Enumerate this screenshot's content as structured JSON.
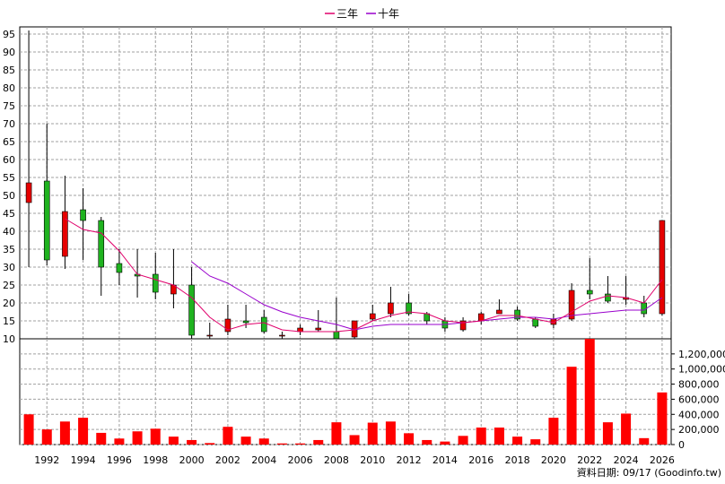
{
  "legend": {
    "items": [
      {
        "label": "三年",
        "color": "#e0006b"
      },
      {
        "label": "十年",
        "color": "#9900cc"
      }
    ],
    "placement": "top-center"
  },
  "footer": {
    "source": "資料日期: 09/17  (Goodinfo.tw)"
  },
  "colors": {
    "up": "#e60000",
    "down": "#1fb31f",
    "volume": "#ff0000",
    "grid": "#a0a0a0",
    "ma3": "#e0006b",
    "ma10": "#9900cc"
  },
  "chart_data": [
    {
      "type": "candlestick",
      "title": "",
      "xlabel": "",
      "ylabel": "",
      "x_ticks": [
        1992,
        1994,
        1996,
        1998,
        2000,
        2002,
        2004,
        2006,
        2008,
        2010,
        2012,
        2014,
        2016,
        2018,
        2020,
        2022,
        2024,
        2026
      ],
      "xlim": [
        1990.5,
        2026.5
      ],
      "ylim": [
        10,
        97
      ],
      "y_ticks": [
        10,
        15,
        20,
        25,
        30,
        35,
        40,
        45,
        50,
        55,
        60,
        65,
        70,
        75,
        80,
        85,
        90,
        95
      ],
      "grid": true,
      "candles": [
        {
          "year": 1991,
          "open": 48,
          "close": 53.5,
          "high": 96,
          "low": 30
        },
        {
          "year": 1992,
          "open": 54,
          "close": 32,
          "high": 70,
          "low": 30.5
        },
        {
          "year": 1993,
          "open": 33,
          "close": 45.5,
          "high": 55.5,
          "low": 29.5
        },
        {
          "year": 1994,
          "open": 46,
          "close": 43,
          "high": 52,
          "low": 32
        },
        {
          "year": 1995,
          "open": 43,
          "close": 30,
          "high": 44,
          "low": 22
        },
        {
          "year": 1996,
          "open": 31,
          "close": 28.5,
          "high": 35,
          "low": 25
        },
        {
          "year": 1997,
          "open": 28,
          "close": 27.5,
          "high": 35,
          "low": 21.5
        },
        {
          "year": 1998,
          "open": 28,
          "close": 23,
          "high": 34,
          "low": 21
        },
        {
          "year": 1999,
          "open": 22.5,
          "close": 25,
          "high": 35,
          "low": 18.5
        },
        {
          "year": 2000,
          "open": 25,
          "close": 11,
          "high": 30,
          "low": 10
        },
        {
          "year": 2001,
          "open": 11,
          "close": 11,
          "high": 14.5,
          "low": 10
        },
        {
          "year": 2002,
          "open": 12,
          "close": 15.5,
          "high": 19.5,
          "low": 11
        },
        {
          "year": 2003,
          "open": 15,
          "close": 14.5,
          "high": 19.5,
          "low": 13
        },
        {
          "year": 2004,
          "open": 16,
          "close": 12,
          "high": 18,
          "low": 11.5
        },
        {
          "year": 2005,
          "open": 11,
          "close": 11,
          "high": 12,
          "low": 10
        },
        {
          "year": 2006,
          "open": 12,
          "close": 13,
          "high": 14,
          "low": 11
        },
        {
          "year": 2007,
          "open": 12.5,
          "close": 13,
          "high": 18,
          "low": 12
        },
        {
          "year": 2008,
          "open": 12,
          "close": 10,
          "high": 21.5,
          "low": 9.5
        },
        {
          "year": 2009,
          "open": 10.5,
          "close": 15,
          "high": 15,
          "low": 10
        },
        {
          "year": 2010,
          "open": 15.5,
          "close": 17,
          "high": 19.5,
          "low": 15
        },
        {
          "year": 2011,
          "open": 17,
          "close": 20,
          "high": 24.5,
          "low": 16
        },
        {
          "year": 2012,
          "open": 20,
          "close": 17,
          "high": 22.5,
          "low": 16.5
        },
        {
          "year": 2013,
          "open": 17,
          "close": 15,
          "high": 17.5,
          "low": 14
        },
        {
          "year": 2014,
          "open": 15,
          "close": 13,
          "high": 16,
          "low": 12
        },
        {
          "year": 2015,
          "open": 12.5,
          "close": 15,
          "high": 16,
          "low": 12
        },
        {
          "year": 2016,
          "open": 15,
          "close": 17,
          "high": 17.5,
          "low": 14
        },
        {
          "year": 2017,
          "open": 17,
          "close": 18,
          "high": 21,
          "low": 17
        },
        {
          "year": 2018,
          "open": 18,
          "close": 15.5,
          "high": 19,
          "low": 15
        },
        {
          "year": 2019,
          "open": 15.5,
          "close": 13.5,
          "high": 16,
          "low": 13
        },
        {
          "year": 2020,
          "open": 14,
          "close": 15.5,
          "high": 17,
          "low": 13
        },
        {
          "year": 2021,
          "open": 15.5,
          "close": 23.5,
          "high": 25.5,
          "low": 15
        },
        {
          "year": 2022,
          "open": 23.5,
          "close": 22.5,
          "high": 32.5,
          "low": 21
        },
        {
          "year": 2023,
          "open": 22.5,
          "close": 20.5,
          "high": 27.5,
          "low": 20
        },
        {
          "year": 2024,
          "open": 21,
          "close": 21.5,
          "high": 27.5,
          "low": 19.5
        },
        {
          "year": 2025,
          "open": 20,
          "close": 17,
          "high": 22,
          "low": 16
        },
        {
          "year": 2026,
          "open": 17,
          "close": 43,
          "high": 43,
          "low": 16.5
        }
      ],
      "series": [
        {
          "name": "三年",
          "values": [
            [
              1993,
              43.5
            ],
            [
              1994,
              40.5
            ],
            [
              1995,
              39.5
            ],
            [
              1996,
              34.5
            ],
            [
              1997,
              28
            ],
            [
              1998,
              26.5
            ],
            [
              1999,
              25
            ],
            [
              2000,
              21.5
            ],
            [
              2001,
              16
            ],
            [
              2002,
              12.5
            ],
            [
              2003,
              14
            ],
            [
              2004,
              14.5
            ],
            [
              2005,
              12.5
            ],
            [
              2006,
              12
            ],
            [
              2007,
              12
            ],
            [
              2008,
              12
            ],
            [
              2009,
              12.5
            ],
            [
              2010,
              15
            ],
            [
              2011,
              16.5
            ],
            [
              2012,
              17.5
            ],
            [
              2013,
              17
            ],
            [
              2014,
              15
            ],
            [
              2015,
              14.5
            ],
            [
              2016,
              15
            ],
            [
              2017,
              16.5
            ],
            [
              2018,
              16.5
            ],
            [
              2019,
              15.5
            ],
            [
              2020,
              14.5
            ],
            [
              2021,
              17.5
            ],
            [
              2022,
              20.5
            ],
            [
              2023,
              22
            ],
            [
              2024,
              21.5
            ],
            [
              2025,
              20
            ],
            [
              2026,
              26.5
            ]
          ]
        },
        {
          "name": "十年",
          "values": [
            [
              2000,
              31.5
            ],
            [
              2001,
              27.5
            ],
            [
              2002,
              25.5
            ],
            [
              2003,
              22.5
            ],
            [
              2004,
              19.5
            ],
            [
              2005,
              17.5
            ],
            [
              2006,
              16
            ],
            [
              2007,
              15
            ],
            [
              2008,
              14
            ],
            [
              2009,
              12.5
            ],
            [
              2010,
              13.5
            ],
            [
              2011,
              14
            ],
            [
              2012,
              14
            ],
            [
              2013,
              14
            ],
            [
              2014,
              14
            ],
            [
              2015,
              14.5
            ],
            [
              2016,
              15
            ],
            [
              2017,
              15.5
            ],
            [
              2018,
              16
            ],
            [
              2019,
              16
            ],
            [
              2020,
              15.5
            ],
            [
              2021,
              16.5
            ],
            [
              2022,
              17
            ],
            [
              2023,
              17.5
            ],
            [
              2024,
              18
            ],
            [
              2025,
              18
            ],
            [
              2026,
              21.5
            ]
          ]
        }
      ]
    },
    {
      "type": "bar",
      "title": "",
      "ylabel": "",
      "ylim": [
        0,
        1400000
      ],
      "y_ticks": [
        0,
        200000,
        400000,
        600000,
        800000,
        1000000,
        1200000
      ],
      "y_tick_labels": [
        "0",
        "200,000",
        "400,000",
        "600,000",
        "800,000",
        "1,000,000",
        "1,200,000"
      ],
      "categories": [
        1991,
        1992,
        1993,
        1994,
        1995,
        1996,
        1997,
        1998,
        1999,
        2000,
        2001,
        2002,
        2003,
        2004,
        2005,
        2006,
        2007,
        2008,
        2009,
        2010,
        2011,
        2012,
        2013,
        2014,
        2015,
        2016,
        2017,
        2018,
        2019,
        2020,
        2021,
        2022,
        2023,
        2024,
        2025,
        2026
      ],
      "values": [
        400000,
        200000,
        305000,
        355000,
        155000,
        80000,
        175000,
        210000,
        105000,
        60000,
        20000,
        235000,
        105000,
        80000,
        15000,
        15000,
        60000,
        295000,
        125000,
        290000,
        305000,
        150000,
        60000,
        40000,
        115000,
        225000,
        225000,
        105000,
        70000,
        355000,
        1030000,
        1400000,
        295000,
        410000,
        85000,
        690000
      ]
    }
  ]
}
